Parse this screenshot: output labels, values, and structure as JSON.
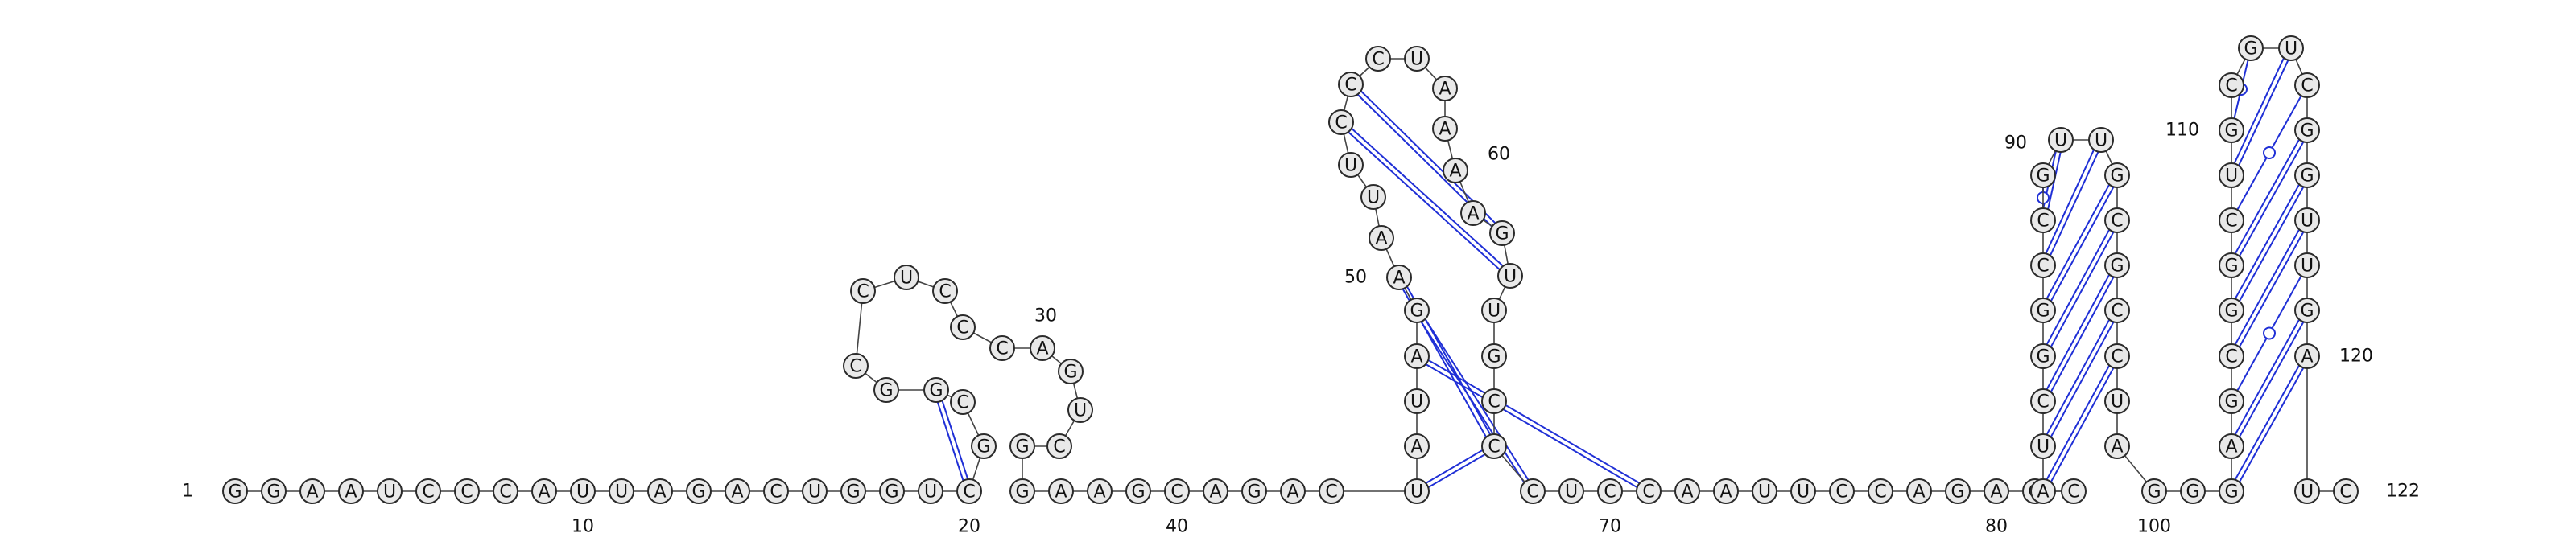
{
  "colors": {
    "canonical_pair": "#1f2fd6",
    "pseudoknot_pair": "#22dd22",
    "nucleotide_fill": "#e9e9e9"
  },
  "sequence": "GGAAUCCCAUUAGACUGGUCGCGGCCUCCCAGUCGGAAGCAGACUAUAGAAUUCCCUAAAAGUUGCCCUCCAAUUCCAGAGCAUCGGCCGUUGCGCCUAGGGAGCGGCUGCGUCGGUUGAUC",
  "pairs": [
    {
      "i": 20,
      "j": 23,
      "type": "canonical"
    },
    {
      "i": 45,
      "j": 67,
      "type": "canonical"
    },
    {
      "i": 48,
      "j": 71,
      "type": "canonical"
    },
    {
      "i": 49,
      "j": 68,
      "type": "canonical"
    },
    {
      "i": 50,
      "j": 67,
      "type": "canonical"
    },
    {
      "i": 54,
      "j": 63,
      "type": "canonical"
    },
    {
      "i": 55,
      "j": 62,
      "type": "canonical"
    },
    {
      "i": 83,
      "j": 97,
      "type": "canonical"
    },
    {
      "i": 84,
      "j": 96,
      "type": "canonical"
    },
    {
      "i": 85,
      "j": 95,
      "type": "canonical"
    },
    {
      "i": 86,
      "j": 94,
      "type": "canonical"
    },
    {
      "i": 87,
      "j": 93,
      "type": "canonical"
    },
    {
      "i": 88,
      "j": 92,
      "type": "canonical"
    },
    {
      "i": 89,
      "j": 91,
      "type": "canonical"
    },
    {
      "i": 89,
      "j": 90,
      "type": "wobble"
    },
    {
      "i": 102,
      "j": 120,
      "type": "canonical"
    },
    {
      "i": 103,
      "j": 119,
      "type": "canonical"
    },
    {
      "i": 104,
      "j": 118,
      "type": "wobble"
    },
    {
      "i": 105,
      "j": 117,
      "type": "canonical"
    },
    {
      "i": 106,
      "j": 116,
      "type": "canonical"
    },
    {
      "i": 107,
      "j": 115,
      "type": "canonical"
    },
    {
      "i": 108,
      "j": 114,
      "type": "wobble"
    },
    {
      "i": 109,
      "j": 113,
      "type": "canonical"
    },
    {
      "i": 110,
      "j": 112,
      "type": "wobble"
    }
  ],
  "labels": [
    {
      "index": 1,
      "text": "1"
    },
    {
      "index": 10,
      "text": "10"
    },
    {
      "index": 20,
      "text": "20"
    },
    {
      "index": 30,
      "text": "30"
    },
    {
      "index": 40,
      "text": "40"
    },
    {
      "index": 50,
      "text": "50"
    },
    {
      "index": 60,
      "text": "60"
    },
    {
      "index": 70,
      "text": "70"
    },
    {
      "index": 80,
      "text": "80"
    },
    {
      "index": 90,
      "text": "90"
    },
    {
      "index": 100,
      "text": "100"
    },
    {
      "index": 110,
      "text": "110"
    },
    {
      "index": 120,
      "text": "120"
    },
    {
      "index": 122,
      "text": "122"
    }
  ]
}
